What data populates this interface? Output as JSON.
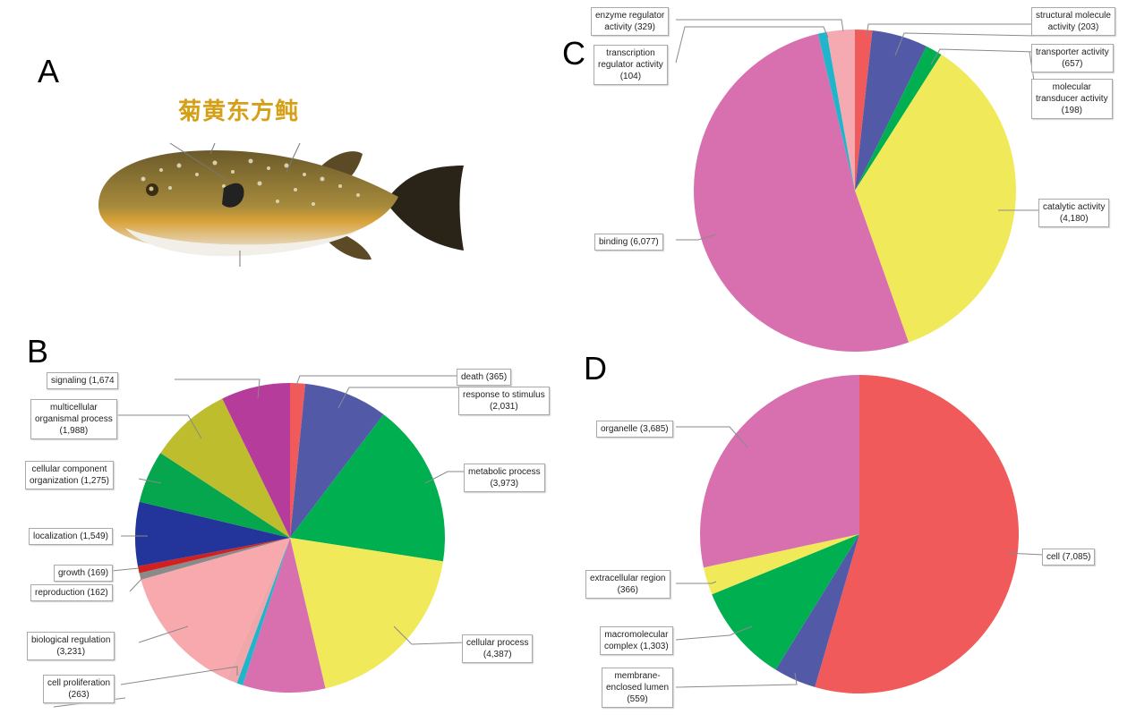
{
  "panels": {
    "A": {
      "letter": "A",
      "title": "菊黄东方鲀"
    },
    "B": {
      "letter": "B"
    },
    "C": {
      "letter": "C"
    },
    "D": {
      "letter": "D"
    }
  },
  "chart_data": [
    {
      "panel": "B",
      "type": "pie",
      "slices": [
        {
          "label": "death",
          "value": 365,
          "color": "#f05a5a",
          "text": "death (365)"
        },
        {
          "label": "response to stimulus",
          "value": 2031,
          "color": "#525aa8",
          "text": "response to stimulus (2,031)"
        },
        {
          "label": "metabolic process",
          "value": 3973,
          "color": "#00b050",
          "text": "metabolic process (3,973)"
        },
        {
          "label": "cellular process",
          "value": 4387,
          "color": "#f0ea5a",
          "text": "cellular process (4,387)"
        },
        {
          "label": "",
          "value": 2000,
          "color": "#d870b0",
          "text": ""
        },
        {
          "label": "",
          "value": 150,
          "color": "#21b5cc",
          "text": ""
        },
        {
          "label": "cell proliferation",
          "value": 263,
          "color": "#efa7ab",
          "text": "cell proliferation (263)"
        },
        {
          "label": "biological regulation",
          "value": 3231,
          "color": "#f7a9ad",
          "text": "biological regulation (3,231)"
        },
        {
          "label": "reproduction",
          "value": 162,
          "color": "#8a8a8a",
          "text": "reproduction (162)"
        },
        {
          "label": "growth",
          "value": 169,
          "color": "#d02020",
          "text": "growth (169)"
        },
        {
          "label": "localization",
          "value": 1549,
          "color": "#23349a",
          "text": "localization (1,549)"
        },
        {
          "label": "cellular component organization",
          "value": 1275,
          "color": "#06a64e",
          "text": "cellular component organization (1,275)"
        },
        {
          "label": "multicellular organismal process",
          "value": 1988,
          "color": "#bdbd2e",
          "text": "multicellular organismal process (1,988)"
        },
        {
          "label": "signaling",
          "value": 1674,
          "color": "#b53c9a",
          "text": "signaling (1,674"
        }
      ]
    },
    {
      "panel": "C",
      "type": "pie",
      "slices": [
        {
          "label": "structural molecule activity",
          "value": 203,
          "color": "#f05a5a",
          "text": "structural molecule activity (203)"
        },
        {
          "label": "transporter activity",
          "value": 657,
          "color": "#525aa8",
          "text": "transporter activity (657)"
        },
        {
          "label": "molecular transducer activity",
          "value": 198,
          "color": "#00b050",
          "text": "molecular transducer activity (198)"
        },
        {
          "label": "catalytic activity",
          "value": 4180,
          "color": "#f0ea5a",
          "text": "catalytic activity (4,180)"
        },
        {
          "label": "binding",
          "value": 6077,
          "color": "#d870b0",
          "text": "binding (6,077)"
        },
        {
          "label": "transcription regulator activity",
          "value": 104,
          "color": "#21b5cc",
          "text": "transcription regulator activity (104)"
        },
        {
          "label": "enzyme regulator activity",
          "value": 329,
          "color": "#f5a9b0",
          "text": "enzyme regulator activity (329)"
        }
      ]
    },
    {
      "panel": "D",
      "type": "pie",
      "slices": [
        {
          "label": "cell",
          "value": 7085,
          "color": "#f05a5a",
          "text": "cell (7,085)"
        },
        {
          "label": "membrane-enclosed lumen",
          "value": 559,
          "color": "#525aa8",
          "text": "membrane-enclosed lumen (559)"
        },
        {
          "label": "macromolecular complex",
          "value": 1303,
          "color": "#00b050",
          "text": "macromolecular complex (1,303)"
        },
        {
          "label": "extracellular region",
          "value": 366,
          "color": "#f0ea5a",
          "text": "extracellular region (366)"
        },
        {
          "label": "organelle",
          "value": 3685,
          "color": "#d870b0",
          "text": "organelle (3,685)"
        }
      ]
    }
  ],
  "labels": {
    "B": {
      "signaling": "signaling (1,674",
      "multicellular": [
        "multicellular",
        "organismal process",
        "(1,988)"
      ],
      "cellular_component": [
        "cellular component",
        "organization (1,275)"
      ],
      "localization": "localization (1,549)",
      "growth": "growth (169)",
      "reproduction": "reproduction (162)",
      "biological_regulation": [
        "biological regulation",
        "(3,231)"
      ],
      "cell_proliferation": [
        "cell proliferation",
        "(263)"
      ],
      "death": "death (365)",
      "response": [
        "response to stimulus",
        "(2,031)"
      ],
      "metabolic": [
        "metabolic process",
        "(3,973)"
      ],
      "cellular_process": [
        "cellular process",
        "(4,387)"
      ]
    },
    "C": {
      "enzyme": [
        "enzyme regulator",
        "activity (329)"
      ],
      "transcription": [
        "transcription",
        "regulator activity",
        "(104)"
      ],
      "structural": [
        "structural molecule",
        "activity (203)"
      ],
      "transporter": [
        "transporter activity",
        "(657)"
      ],
      "transducer": [
        "molecular",
        "transducer activity",
        "(198)"
      ],
      "catalytic": [
        "catalytic activity",
        "(4,180)"
      ],
      "binding": "binding (6,077)"
    },
    "D": {
      "organelle": "organelle (3,685)",
      "cell": "cell (7,085)",
      "extracellular": [
        "extracellular region",
        "(366)"
      ],
      "macromolecular": [
        "macromolecular",
        "complex (1,303)"
      ],
      "membrane": [
        "membrane-",
        "enclosed lumen",
        "(559)"
      ]
    }
  }
}
